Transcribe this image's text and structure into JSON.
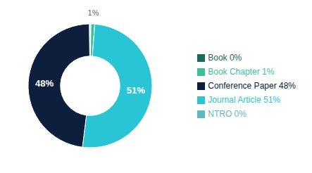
{
  "chart_data": {
    "type": "pie",
    "categories": [
      "Book 0%",
      "Book Chapter 1%",
      "Journal Article 51%",
      "Conference Paper 48%",
      "NTRO 0%"
    ],
    "values": [
      0.2,
      1.0,
      51.0,
      48.0,
      0.2
    ],
    "value_labels": [
      null,
      "1%",
      "51%",
      "48%",
      null
    ],
    "colors": [
      "#1b6b5a",
      "#3dbf99",
      "#29c5d4",
      "#0d1f3c",
      "#5fb8c0"
    ],
    "data_labels": true,
    "legend": "right"
  }
}
